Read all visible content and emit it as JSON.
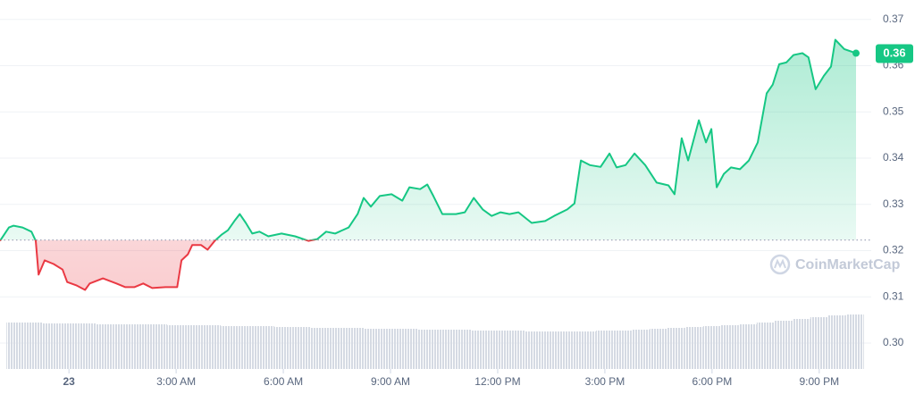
{
  "chart_data": {
    "type": "line",
    "series": [
      {
        "color": "#16c784",
        "below_color": "#ea3943",
        "x": [
          -1.93,
          -1.68,
          -1.55,
          -1.3,
          -1.05,
          -0.93,
          -0.85,
          -0.68,
          -0.43,
          -0.18,
          -0.05,
          0.2,
          0.45,
          0.58,
          0.95,
          1.33,
          1.58,
          1.83,
          2.08,
          2.33,
          2.7,
          3.03,
          3.15,
          3.33,
          3.45,
          3.7,
          3.88,
          4.08,
          4.28,
          4.45,
          4.63,
          4.78,
          4.95,
          5.13,
          5.33,
          5.58,
          5.95,
          6.33,
          6.7,
          6.95,
          7.2,
          7.45,
          7.83,
          8.08,
          8.25,
          8.45,
          8.7,
          9.03,
          9.33,
          9.53,
          9.83,
          10.03,
          10.2,
          10.45,
          10.83,
          11.08,
          11.33,
          11.58,
          11.83,
          12.08,
          12.33,
          12.58,
          12.95,
          13.33,
          13.58,
          13.95,
          14.15,
          14.33,
          14.58,
          14.88,
          15.13,
          15.33,
          15.58,
          15.83,
          16.13,
          16.45,
          16.78,
          16.95,
          17.15,
          17.33,
          17.63,
          17.83,
          17.98,
          18.13,
          18.33,
          18.53,
          18.78,
          19.03,
          19.28,
          19.53,
          19.7,
          19.88,
          20.08,
          20.28,
          20.53,
          20.7,
          20.9,
          21.13,
          21.33,
          21.45,
          21.7,
          22.03
        ],
        "values": [
          0.3221,
          0.325,
          0.3254,
          0.325,
          0.3241,
          0.3221,
          0.3148,
          0.3179,
          0.3171,
          0.3159,
          0.3132,
          0.3125,
          0.3115,
          0.3129,
          0.314,
          0.3129,
          0.3121,
          0.3121,
          0.3129,
          0.3119,
          0.3121,
          0.3121,
          0.3179,
          0.3192,
          0.3212,
          0.3212,
          0.3202,
          0.3221,
          0.3235,
          0.3244,
          0.3264,
          0.3279,
          0.326,
          0.3237,
          0.3241,
          0.3231,
          0.3237,
          0.3231,
          0.3221,
          0.3225,
          0.3241,
          0.3237,
          0.325,
          0.3279,
          0.3314,
          0.3295,
          0.3318,
          0.3322,
          0.3308,
          0.3337,
          0.3333,
          0.3343,
          0.3318,
          0.3279,
          0.3279,
          0.3283,
          0.3314,
          0.3289,
          0.3275,
          0.3283,
          0.3279,
          0.3283,
          0.326,
          0.3264,
          0.3275,
          0.3289,
          0.3302,
          0.3395,
          0.3385,
          0.3381,
          0.341,
          0.338,
          0.3385,
          0.341,
          0.3385,
          0.3347,
          0.3341,
          0.3322,
          0.3443,
          0.3395,
          0.3482,
          0.3434,
          0.3463,
          0.3337,
          0.3366,
          0.338,
          0.3376,
          0.3395,
          0.3434,
          0.354,
          0.3559,
          0.3603,
          0.3607,
          0.3623,
          0.3627,
          0.3618,
          0.3549,
          0.3578,
          0.3598,
          0.3656,
          0.3636,
          0.3627
        ]
      }
    ],
    "baseline": 0.3223,
    "current_price_label": "0.36",
    "watermark": "CoinMarketCap",
    "xlim": [
      -1.93,
      22.08
    ],
    "xticks": [
      {
        "value": 0,
        "label": "23"
      },
      {
        "value": 3,
        "label": "3:00 AM"
      },
      {
        "value": 6,
        "label": "6:00 AM"
      },
      {
        "value": 9,
        "label": "9:00 AM"
      },
      {
        "value": 12,
        "label": "12:00 PM"
      },
      {
        "value": 15,
        "label": "3:00 PM"
      },
      {
        "value": 18,
        "label": "6:00 PM"
      },
      {
        "value": 21,
        "label": "9:00 PM"
      }
    ],
    "ylim": [
      0.2944,
      0.3742
    ],
    "yticks": [
      {
        "value": 0.3,
        "label": "0.30"
      },
      0.31,
      0.32,
      0.33,
      0.34,
      0.35,
      0.36,
      0.37
    ],
    "grid": true,
    "volume": {
      "color": "#cfd6e4",
      "ylim": [
        0,
        100
      ],
      "x": [
        -1.5,
        -1,
        -0.5,
        0,
        0.5,
        1,
        1.5,
        2,
        2.5,
        3,
        3.5,
        4,
        4.5,
        5,
        5.5,
        6,
        6.5,
        7,
        7.5,
        8,
        8.5,
        9,
        9.5,
        10,
        10.5,
        11,
        11.5,
        12,
        12.5,
        13,
        13.5,
        14,
        14.5,
        15,
        15.5,
        16,
        16.5,
        17,
        17.5,
        18,
        18.5,
        19,
        19.5,
        20,
        20.5,
        21,
        21.5,
        22
      ],
      "values": [
        52,
        52,
        51,
        51,
        51,
        50,
        50,
        50,
        50,
        49,
        49,
        49,
        48,
        48,
        48,
        47,
        47,
        46,
        46,
        46,
        45,
        45,
        45,
        44,
        44,
        44,
        43,
        43,
        43,
        42,
        42,
        42,
        42,
        43,
        43,
        44,
        45,
        46,
        47,
        48,
        49,
        50,
        52,
        54,
        56,
        58,
        60,
        61
      ]
    }
  }
}
